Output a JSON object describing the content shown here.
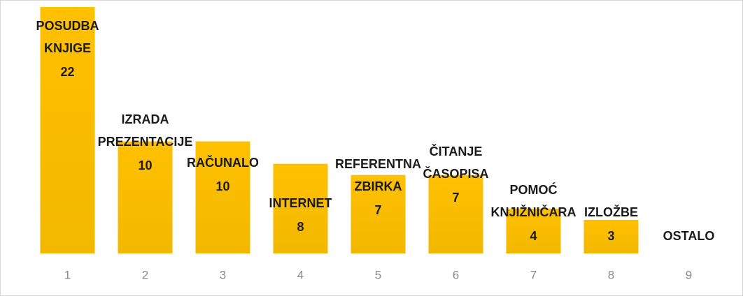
{
  "chart_data": {
    "type": "bar",
    "categories": [
      "1",
      "2",
      "3",
      "4",
      "5",
      "6",
      "7",
      "8",
      "9"
    ],
    "labels": [
      [
        "POSUDBA",
        "KNJIGE"
      ],
      [
        "IZRADA",
        "PREZENTACIJE"
      ],
      [
        "RAČUNALO"
      ],
      [
        "INTERNET"
      ],
      [
        "REFERENTNA",
        "ZBIRKA"
      ],
      [
        "ČITANJE",
        "ČASOPISA"
      ],
      [
        "POMOĆ",
        "KNJIŽNIČARA"
      ],
      [
        "IZLOŽBE"
      ],
      [
        "OSTALO"
      ]
    ],
    "values": [
      22,
      10,
      10,
      8,
      7,
      7,
      4,
      3,
      null
    ],
    "color": "#FFC000"
  }
}
